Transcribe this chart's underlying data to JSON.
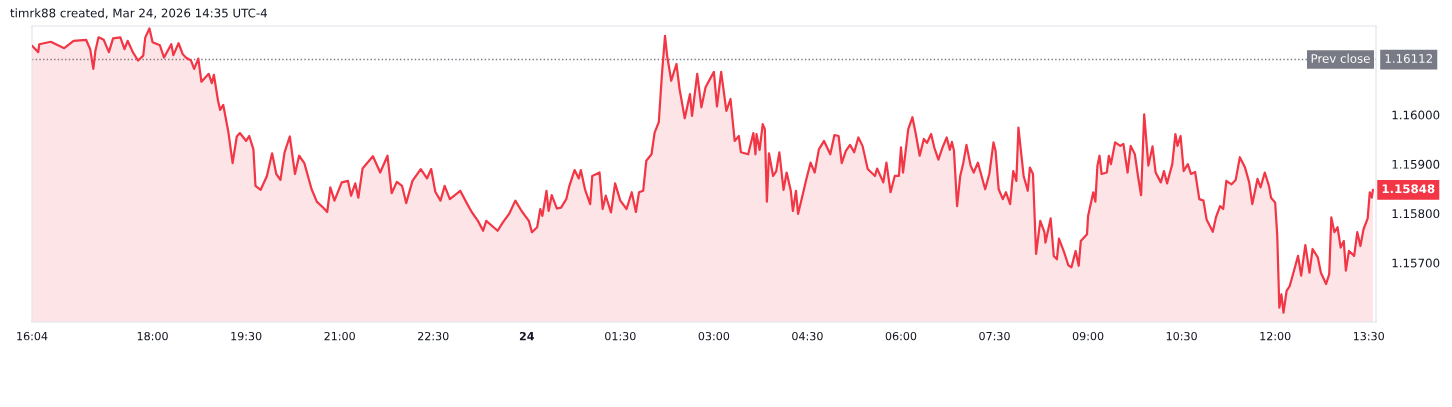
{
  "chart_data": {
    "type": "area",
    "title": "timrk88 created, Mar 24, 2026 14:35 UTC-4",
    "x": [
      "2026-03-23T16:04",
      "2026-03-23T16:10",
      "2026-03-23T16:11",
      "2026-03-23T16:22",
      "2026-03-23T16:35",
      "2026-03-23T16:44",
      "2026-03-23T16:56",
      "2026-03-23T17:00",
      "2026-03-23T17:03",
      "2026-03-23T17:05",
      "2026-03-23T17:08",
      "2026-03-23T17:13",
      "2026-03-23T17:18",
      "2026-03-23T17:22",
      "2026-03-23T17:29",
      "2026-03-23T17:33",
      "2026-03-23T17:36",
      "2026-03-23T17:41",
      "2026-03-23T17:46",
      "2026-03-23T17:51",
      "2026-03-23T17:53",
      "2026-03-23T17:57",
      "2026-03-23T18:00",
      "2026-03-23T18:07",
      "2026-03-23T18:11",
      "2026-03-23T18:18",
      "2026-03-23T18:20",
      "2026-03-23T18:25",
      "2026-03-23T18:29",
      "2026-03-23T18:32",
      "2026-03-23T18:37",
      "2026-03-23T18:40",
      "2026-03-23T18:44",
      "2026-03-23T18:47",
      "2026-03-23T18:54",
      "2026-03-23T18:57",
      "2026-03-23T18:59",
      "2026-03-23T19:03",
      "2026-03-23T19:05",
      "2026-03-23T19:08",
      "2026-03-23T19:13",
      "2026-03-23T19:17",
      "2026-03-23T19:21",
      "2026-03-23T19:24",
      "2026-03-23T19:30",
      "2026-03-23T19:33",
      "2026-03-23T19:37",
      "2026-03-23T19:39",
      "2026-03-23T19:44",
      "2026-03-23T19:50",
      "2026-03-23T19:55",
      "2026-03-23T19:59",
      "2026-03-23T20:03",
      "2026-03-23T20:07",
      "2026-03-23T20:12",
      "2026-03-23T20:17",
      "2026-03-23T20:21",
      "2026-03-23T20:26",
      "2026-03-23T20:33",
      "2026-03-23T20:38",
      "2026-03-23T20:44",
      "2026-03-23T20:48",
      "2026-03-23T20:51",
      "2026-03-23T20:55",
      "2026-03-23T21:02",
      "2026-03-23T21:08",
      "2026-03-23T21:11",
      "2026-03-23T21:15",
      "2026-03-23T21:18",
      "2026-03-23T21:22",
      "2026-03-23T21:32",
      "2026-03-23T21:39",
      "2026-03-23T21:46",
      "2026-03-23T21:50",
      "2026-03-23T21:55",
      "2026-03-23T22:00",
      "2026-03-23T22:04",
      "2026-03-23T22:10",
      "2026-03-23T22:18",
      "2026-03-23T22:24",
      "2026-03-23T22:28",
      "2026-03-23T22:32",
      "2026-03-23T22:37",
      "2026-03-23T22:41",
      "2026-03-23T22:46",
      "2026-03-23T22:56",
      "2026-03-23T23:02",
      "2026-03-23T23:07",
      "2026-03-23T23:13",
      "2026-03-23T23:18",
      "2026-03-23T23:21",
      "2026-03-23T23:32",
      "2026-03-23T23:37",
      "2026-03-23T23:43",
      "2026-03-23T23:49",
      "2026-03-23T23:55",
      "2026-03-24T00:02",
      "2026-03-24T00:05",
      "2026-03-24T00:10",
      "2026-03-24T00:13",
      "2026-03-24T00:15",
      "2026-03-24T00:19",
      "2026-03-24T00:21",
      "2026-03-24T00:24",
      "2026-03-24T00:29",
      "2026-03-24T00:33",
      "2026-03-24T00:38",
      "2026-03-24T00:41",
      "2026-03-24T00:46",
      "2026-03-24T00:50",
      "2026-03-24T00:52",
      "2026-03-24T00:56",
      "2026-03-24T01:01",
      "2026-03-24T01:03",
      "2026-03-24T01:10",
      "2026-03-24T01:13",
      "2026-03-24T01:16",
      "2026-03-24T01:21",
      "2026-03-24T01:25",
      "2026-03-24T01:30",
      "2026-03-24T01:36",
      "2026-03-24T01:41",
      "2026-03-24T01:45",
      "2026-03-24T01:48",
      "2026-03-24T01:52",
      "2026-03-24T01:55",
      "2026-03-24T02:00",
      "2026-03-24T02:03",
      "2026-03-24T02:07",
      "2026-03-24T02:10",
      "2026-03-24T02:13",
      "2026-03-24T02:15",
      "2026-03-24T02:19",
      "2026-03-24T02:24",
      "2026-03-24T02:27",
      "2026-03-24T02:32",
      "2026-03-24T02:37",
      "2026-03-24T02:39",
      "2026-03-24T02:44",
      "2026-03-24T02:48",
      "2026-03-24T02:52",
      "2026-03-24T03:00",
      "2026-03-24T03:03",
      "2026-03-24T03:07",
      "2026-03-24T03:12",
      "2026-03-24T03:16",
      "2026-03-24T03:20",
      "2026-03-24T03:24",
      "2026-03-24T03:26",
      "2026-03-24T03:33",
      "2026-03-24T03:38",
      "2026-03-24T03:40",
      "2026-03-24T03:41",
      "2026-03-24T03:44",
      "2026-03-24T03:47",
      "2026-03-24T03:49",
      "2026-03-24T03:51",
      "2026-03-24T03:53",
      "2026-03-24T03:57",
      "2026-03-24T04:00",
      "2026-03-24T04:03",
      "2026-03-24T04:07",
      "2026-03-24T04:10",
      "2026-03-24T04:14",
      "2026-03-24T04:16",
      "2026-03-24T04:19",
      "2026-03-24T04:21",
      "2026-03-24T04:26",
      "2026-03-24T04:29",
      "2026-03-24T04:33",
      "2026-03-24T04:37",
      "2026-03-24T04:41",
      "2026-03-24T04:46",
      "2026-03-24T04:52",
      "2026-03-24T04:56",
      "2026-03-24T05:00",
      "2026-03-24T05:03",
      "2026-03-24T05:07",
      "2026-03-24T05:11",
      "2026-03-24T05:15",
      "2026-03-24T05:19",
      "2026-03-24T05:23",
      "2026-03-24T05:28",
      "2026-03-24T05:35",
      "2026-03-24T05:37",
      "2026-03-24T05:43",
      "2026-03-24T05:46",
      "2026-03-24T05:50",
      "2026-03-24T05:54",
      "2026-03-24T05:58",
      "2026-03-24T06:00",
      "2026-03-24T06:02",
      "2026-03-24T06:07",
      "2026-03-24T06:11",
      "2026-03-24T06:14",
      "2026-03-24T06:18",
      "2026-03-24T06:22",
      "2026-03-24T06:25",
      "2026-03-24T06:29",
      "2026-03-24T06:32",
      "2026-03-24T06:36",
      "2026-03-24T06:40",
      "2026-03-24T06:44",
      "2026-03-24T06:47",
      "2026-03-24T06:49",
      "2026-03-24T06:51",
      "2026-03-24T06:54",
      "2026-03-24T06:57",
      "2026-03-24T07:00",
      "2026-03-24T07:03",
      "2026-03-24T07:07",
      "2026-03-24T07:10",
      "2026-03-24T07:14",
      "2026-03-24T07:17",
      "2026-03-24T07:21",
      "2026-03-24T07:25",
      "2026-03-24T07:29",
      "2026-03-24T07:31",
      "2026-03-24T07:34",
      "2026-03-24T07:38",
      "2026-03-24T07:41",
      "2026-03-24T07:45",
      "2026-03-24T07:48",
      "2026-03-24T07:51",
      "2026-03-24T07:53",
      "2026-03-24T07:58",
      "2026-03-24T08:02",
      "2026-03-24T08:04",
      "2026-03-24T08:07",
      "2026-03-24T08:10",
      "2026-03-24T08:14",
      "2026-03-24T08:18",
      "2026-03-24T08:19",
      "2026-03-24T08:24",
      "2026-03-24T08:27",
      "2026-03-24T08:30",
      "2026-03-24T08:32",
      "2026-03-24T08:37",
      "2026-03-24T08:41",
      "2026-03-24T08:44",
      "2026-03-24T08:48",
      "2026-03-24T08:51",
      "2026-03-24T08:53",
      "2026-03-24T08:59",
      "2026-03-24T09:00",
      "2026-03-24T09:05",
      "2026-03-24T09:07",
      "2026-03-24T09:09",
      "2026-03-24T09:11",
      "2026-03-24T09:13",
      "2026-03-24T09:18",
      "2026-03-24T09:20",
      "2026-03-24T09:22",
      "2026-03-24T09:26",
      "2026-03-24T09:31",
      "2026-03-24T09:34",
      "2026-03-24T09:38",
      "2026-03-24T09:41",
      "2026-03-24T09:45",
      "2026-03-24T09:48",
      "2026-03-24T09:51",
      "2026-03-24T09:54",
      "2026-03-24T09:58",
      "2026-03-24T10:02",
      "2026-03-24T10:05",
      "2026-03-24T10:10",
      "2026-03-24T10:13",
      "2026-03-24T10:16",
      "2026-03-24T10:21",
      "2026-03-24T10:24",
      "2026-03-24T10:26",
      "2026-03-24T10:29",
      "2026-03-24T10:32",
      "2026-03-24T10:36",
      "2026-03-24T10:39",
      "2026-03-24T10:43",
      "2026-03-24T10:47",
      "2026-03-24T10:51",
      "2026-03-24T10:54",
      "2026-03-24T11:00",
      "2026-03-24T11:03",
      "2026-03-24T11:07",
      "2026-03-24T11:10",
      "2026-03-24T11:13",
      "2026-03-24T11:18",
      "2026-03-24T11:22",
      "2026-03-24T11:26",
      "2026-03-24T11:31",
      "2026-03-24T11:35",
      "2026-03-24T11:38",
      "2026-03-24T11:43",
      "2026-03-24T11:46",
      "2026-03-24T11:50",
      "2026-03-24T11:54",
      "2026-03-24T11:56",
      "2026-03-24T12:00",
      "2026-03-24T12:02",
      "2026-03-24T12:04",
      "2026-03-24T12:06",
      "2026-03-24T12:08",
      "2026-03-24T12:11",
      "2026-03-24T12:14",
      "2026-03-24T12:19",
      "2026-03-24T12:22",
      "2026-03-24T12:25",
      "2026-03-24T12:29",
      "2026-03-24T12:33",
      "2026-03-24T12:36",
      "2026-03-24T12:41",
      "2026-03-24T12:44",
      "2026-03-24T12:49",
      "2026-03-24T12:52",
      "2026-03-24T12:54",
      "2026-03-24T12:57",
      "2026-03-24T13:00",
      "2026-03-24T13:03",
      "2026-03-24T13:06",
      "2026-03-24T13:08",
      "2026-03-24T13:11",
      "2026-03-24T13:16",
      "2026-03-24T13:19",
      "2026-03-24T13:22",
      "2026-03-24T13:25",
      "2026-03-24T13:29",
      "2026-03-24T13:31",
      "2026-03-24T13:33",
      "2026-03-24T13:34"
    ],
    "series": [
      {
        "color": "#f23645",
        "values": [
          1.1614,
          1.16127,
          1.16143,
          1.16148,
          1.16135,
          1.1615,
          1.16152,
          1.16133,
          1.16093,
          1.1613,
          1.16157,
          1.16152,
          1.16127,
          1.16155,
          1.16157,
          1.16133,
          1.1615,
          1.16127,
          1.1611,
          1.1612,
          1.16157,
          1.16175,
          1.16147,
          1.16141,
          1.16116,
          1.16143,
          1.16121,
          1.16145,
          1.16123,
          1.16116,
          1.1611,
          1.16093,
          1.16114,
          1.16067,
          1.16083,
          1.16064,
          1.16081,
          1.16028,
          1.1601,
          1.1602,
          1.15964,
          1.15902,
          1.15956,
          1.15963,
          1.15947,
          1.15957,
          1.1593,
          1.15856,
          1.15848,
          1.15876,
          1.15922,
          1.1588,
          1.15868,
          1.15924,
          1.15956,
          1.1588,
          1.15917,
          1.15902,
          1.15849,
          1.15824,
          1.15812,
          1.15803,
          1.15853,
          1.15826,
          1.15863,
          1.15866,
          1.15836,
          1.15861,
          1.15832,
          1.15891,
          1.15916,
          1.15883,
          1.15917,
          1.15841,
          1.15864,
          1.15856,
          1.15821,
          1.15866,
          1.1589,
          1.15871,
          1.1589,
          1.15844,
          1.15826,
          1.15856,
          1.15829,
          1.15846,
          1.15822,
          1.15803,
          1.15785,
          1.15765,
          1.15785,
          1.15765,
          1.15782,
          1.15799,
          1.15826,
          1.15805,
          1.15785,
          1.15762,
          1.15772,
          1.15809,
          1.15795,
          1.15846,
          1.15805,
          1.15837,
          1.1581,
          1.15812,
          1.15829,
          1.15856,
          1.15888,
          1.15871,
          1.15888,
          1.15849,
          1.15819,
          1.15876,
          1.15883,
          1.15809,
          1.15836,
          1.15802,
          1.15861,
          1.15826,
          1.15809,
          1.15843,
          1.15803,
          1.15843,
          1.15846,
          1.15907,
          1.1592,
          1.15964,
          1.15985,
          1.16081,
          1.1616,
          1.1612,
          1.16069,
          1.16103,
          1.16052,
          1.15993,
          1.16042,
          1.15998,
          1.16083,
          1.16015,
          1.16056,
          1.16087,
          1.16017,
          1.16087,
          1.16008,
          1.16032,
          1.15947,
          1.15957,
          1.15924,
          1.1592,
          1.15963,
          1.1592,
          1.15961,
          1.15929,
          1.15981,
          1.15971,
          1.15824,
          1.15922,
          1.15876,
          1.15886,
          1.15924,
          1.15848,
          1.15883,
          1.15846,
          1.15805,
          1.15846,
          1.15799,
          1.15843,
          1.1587,
          1.15903,
          1.15883,
          1.1593,
          1.15947,
          1.1592,
          1.15959,
          1.15957,
          1.15902,
          1.15927,
          1.15939,
          1.15924,
          1.15954,
          1.15937,
          1.1589,
          1.15876,
          1.15891,
          1.15863,
          1.15903,
          1.15843,
          1.15876,
          1.15876,
          1.15934,
          1.15883,
          1.15971,
          1.15995,
          1.15964,
          1.15917,
          1.15951,
          1.15943,
          1.15961,
          1.15934,
          1.15909,
          1.15934,
          1.15954,
          1.15929,
          1.15945,
          1.15927,
          1.15815,
          1.15876,
          1.15903,
          1.15939,
          1.15897,
          1.15883,
          1.15903,
          1.1588,
          1.15849,
          1.1588,
          1.15944,
          1.15927,
          1.15849,
          1.15829,
          1.15843,
          1.15819,
          1.15886,
          1.15866,
          1.15974,
          1.15876,
          1.15846,
          1.15893,
          1.1588,
          1.15718,
          1.15785,
          1.15762,
          1.15741,
          1.1579,
          1.15714,
          1.15707,
          1.15749,
          1.15721,
          1.15695,
          1.15691,
          1.15724,
          1.15694,
          1.15744,
          1.15758,
          1.15795,
          1.15843,
          1.15824,
          1.15897,
          1.15917,
          1.1588,
          1.15883,
          1.15917,
          1.159,
          1.15944,
          1.15937,
          1.15941,
          1.15883,
          1.15937,
          1.1592,
          1.15876,
          1.15837,
          1.16001,
          1.15897,
          1.15936,
          1.15883,
          1.15863,
          1.15886,
          1.15861,
          1.159,
          1.15961,
          1.15937,
          1.15957,
          1.15886,
          1.159,
          1.1588,
          1.15884,
          1.15829,
          1.15826,
          1.15788,
          1.15763,
          1.15792,
          1.15815,
          1.15809,
          1.15866,
          1.15859,
          1.15868,
          1.15914,
          1.15893,
          1.15863,
          1.15819,
          1.1587,
          1.15853,
          1.15883,
          1.15856,
          1.15832,
          1.15822,
          1.15755,
          1.15609,
          1.15636,
          1.15599,
          1.15643,
          1.15653,
          1.15691,
          1.15714,
          1.15674,
          1.15736,
          1.1568,
          1.15728,
          1.15711,
          1.1568,
          1.15657,
          1.15677,
          1.15792,
          1.15762,
          1.15772,
          1.15731,
          1.15744,
          1.15684,
          1.15724,
          1.15714,
          1.15762,
          1.15734,
          1.15768,
          1.1579,
          1.15843,
          1.15832,
          1.15848
        ]
      }
    ],
    "xlim": [
      "2026-03-23T16:04",
      "2026-03-24T13:37"
    ],
    "xticks": [
      {
        "value": "2026-03-23T16:04",
        "label": "16:04"
      },
      {
        "value": "2026-03-23T18:00",
        "label": "18:00"
      },
      {
        "value": "2026-03-23T19:30",
        "label": "19:30"
      },
      {
        "value": "2026-03-23T21:00",
        "label": "21:00"
      },
      {
        "value": "2026-03-23T22:30",
        "label": "22:30"
      },
      {
        "value": "2026-03-24T00:00",
        "label": "24"
      },
      {
        "value": "2026-03-24T01:30",
        "label": "01:30"
      },
      {
        "value": "2026-03-24T03:00",
        "label": "03:00"
      },
      {
        "value": "2026-03-24T04:30",
        "label": "04:30"
      },
      {
        "value": "2026-03-24T06:00",
        "label": "06:00"
      },
      {
        "value": "2026-03-24T07:30",
        "label": "07:30"
      },
      {
        "value": "2026-03-24T09:00",
        "label": "09:00"
      },
      {
        "value": "2026-03-24T10:30",
        "label": "10:30"
      },
      {
        "value": "2026-03-24T12:00",
        "label": "12:00"
      },
      {
        "value": "2026-03-24T13:30",
        "label": "13:30"
      }
    ],
    "ylim": [
      1.1558,
      1.1618
    ],
    "yticks": [
      {
        "value": 1.157,
        "label": "1.15700"
      },
      {
        "value": 1.158,
        "label": "1.15800"
      },
      {
        "value": 1.159,
        "label": "1.15900"
      },
      {
        "value": 1.16,
        "label": "1.16000"
      }
    ],
    "ref_lines": [
      {
        "axis": "y",
        "value": 1.16112,
        "label": "Prev close",
        "color": "#787b86",
        "line_style": "dotted"
      }
    ],
    "annotations": [
      "1.16112",
      {
        "text": "1.15848",
        "x": "2026-03-24T13:34",
        "y": 1.15848
      }
    ],
    "marker": "none",
    "line_style": "solid"
  }
}
